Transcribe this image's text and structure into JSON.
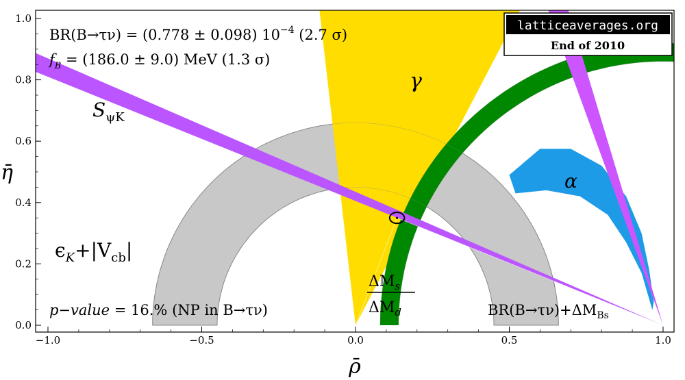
{
  "chart_data": {
    "type": "area",
    "xlabel": "ρ̄",
    "ylabel": "η̄",
    "xlim": [
      -1.0,
      1.0
    ],
    "ylim": [
      0.0,
      1.0
    ],
    "xticks": [
      -1.0,
      -0.5,
      0.0,
      0.5,
      1.0
    ],
    "xtick_labels": [
      "−1.0",
      "−0.5",
      "0.0",
      "0.5",
      "1.0"
    ],
    "yticks": [
      0.0,
      0.2,
      0.4,
      0.6,
      0.8,
      1.0
    ],
    "ytick_labels": [
      "0.0",
      "0.2",
      "0.4",
      "0.6",
      "0.8",
      "1.0"
    ],
    "info_box": {
      "site": "latticeaverages.org",
      "date": "End of 2010"
    },
    "annotations": {
      "br_line": "BR(B→τν) = (0.778 ± 0.098) 10",
      "br_exp": "−4",
      "br_tail": " (2.7 σ)",
      "fb_sym": "f",
      "fb_sub": "B",
      "fb_line": " = (186.0 ± 9.0) MeV (1.3 σ)",
      "pvalue_label": "p−value",
      "pvalue_text": " =  16.% (NP in B→τν)"
    },
    "constraint_labels": {
      "gamma": "γ",
      "alpha": "α",
      "spsik_main": "S",
      "spsik_sub": "ψK",
      "epsk_main": "ϵ",
      "epsk_sub": "K",
      "epsk_rest": "+|V",
      "epsk_rest_sub": "cb",
      "epsk_close": "|",
      "dms_num": "ΔM",
      "dms_num_sub": "s",
      "dms_den": "ΔM",
      "dms_den_sub": "d",
      "brdm": "BR(B→τν)+ΔM",
      "brdm_sub": "Bs"
    },
    "series": [
      {
        "color": "#c8c8c8",
        "shape": "ring",
        "center": [
          0,
          0
        ],
        "r_inner": 0.45,
        "r_outer": 0.66
      },
      {
        "color": "#ffdd00",
        "shape": "wedge",
        "apex": [
          0,
          0
        ],
        "angle_deg": [
          62.5,
          96.5
        ]
      },
      {
        "color": "#008800",
        "shape": "ring",
        "center": [
          1,
          0
        ],
        "r_inner": 0.86,
        "r_outer": 0.92
      },
      {
        "color": "#b4b4ff",
        "shape": "hyperbolic_band"
      },
      {
        "color": "#bb55ff",
        "shape": "line_band",
        "from": [
          1,
          0
        ],
        "slope": [
          -0.405,
          -0.435
        ]
      },
      {
        "color": "#1e9be6",
        "shape": "crescent"
      },
      {
        "color": "#cc55ff",
        "shape": "line_band",
        "from": [
          1,
          0
        ],
        "to_x": [
          0.6,
          0.67
        ]
      }
    ],
    "fit_point": {
      "rho": 0.135,
      "eta": 0.35,
      "ellipse_rx": 0.024,
      "ellipse_ry": 0.018
    }
  }
}
